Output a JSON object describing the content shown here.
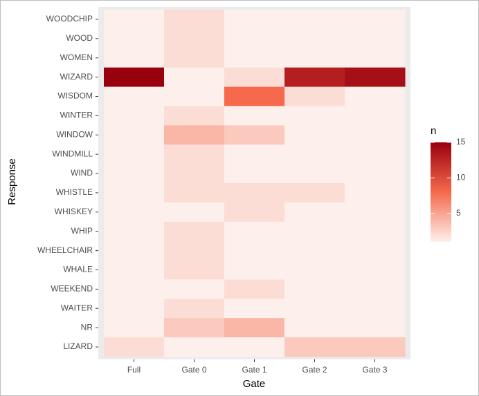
{
  "chart_data": {
    "type": "heatmap",
    "x_label": "Gate",
    "y_label": "Response",
    "legend_title": "n",
    "categories": [
      "Full",
      "Gate 0",
      "Gate 1",
      "Gate 2",
      "Gate 3"
    ],
    "rows": [
      "WOODCHIP",
      "WOOD",
      "WOMEN",
      "WIZARD",
      "WISDOM",
      "WINTER",
      "WINDOW",
      "WINDMILL",
      "WIND",
      "WHISTLE",
      "WHISKEY",
      "WHIP",
      "WHEELCHAIR",
      "WHALE",
      "WEEKEND",
      "WAITER",
      "NR",
      "LIZARD"
    ],
    "values": [
      [
        1,
        2,
        1,
        1,
        1
      ],
      [
        1,
        2,
        1,
        1,
        1
      ],
      [
        1,
        2,
        1,
        1,
        1
      ],
      [
        15,
        1,
        2,
        13,
        14
      ],
      [
        1,
        1,
        8,
        2,
        1
      ],
      [
        1,
        2,
        1,
        1,
        1
      ],
      [
        1,
        4,
        3,
        1,
        1
      ],
      [
        1,
        2,
        1,
        1,
        1
      ],
      [
        1,
        2,
        1,
        1,
        1
      ],
      [
        1,
        2,
        2,
        2,
        1
      ],
      [
        1,
        1,
        2,
        1,
        1
      ],
      [
        1,
        2,
        1,
        1,
        1
      ],
      [
        1,
        2,
        1,
        1,
        1
      ],
      [
        1,
        2,
        1,
        1,
        1
      ],
      [
        1,
        1,
        2,
        1,
        1
      ],
      [
        1,
        2,
        1,
        1,
        1
      ],
      [
        1,
        3,
        4,
        1,
        1
      ],
      [
        2,
        1,
        1,
        3,
        3
      ]
    ],
    "clim": [
      1,
      15
    ],
    "legend_ticks": [
      5,
      10,
      15
    ],
    "colors": [
      "#fdf0ec",
      "#f6694c",
      "#99000d"
    ]
  }
}
